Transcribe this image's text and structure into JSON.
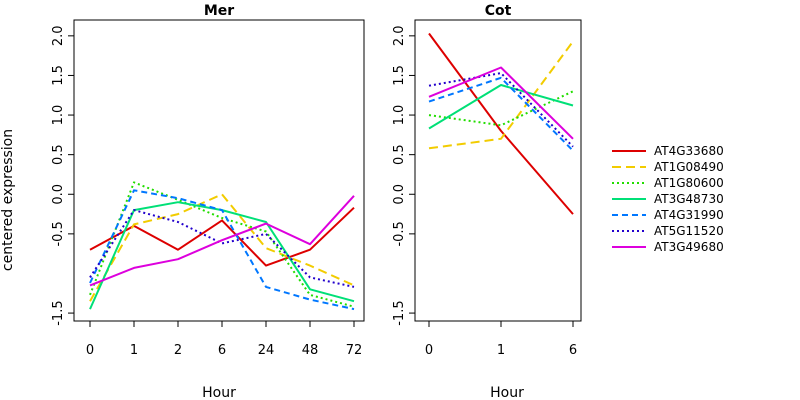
{
  "chart_data": {
    "type": "line",
    "ylabel": "centered expression",
    "legend_position": "right",
    "series_styles": [
      {
        "name": "AT4G33680",
        "color": "#dd0000",
        "dash": "solid"
      },
      {
        "name": "AT1G08490",
        "color": "#f2cc00",
        "dash": "long-dash"
      },
      {
        "name": "AT1G80600",
        "color": "#22dd00",
        "dash": "dotted"
      },
      {
        "name": "AT3G48730",
        "color": "#00e077",
        "dash": "solid"
      },
      {
        "name": "AT4G31990",
        "color": "#0077ff",
        "dash": "dashed"
      },
      {
        "name": "AT5G11520",
        "color": "#2200cc",
        "dash": "dotted"
      },
      {
        "name": "AT3G49680",
        "color": "#dd00dd",
        "dash": "solid"
      }
    ],
    "panels": [
      {
        "title": "Mer",
        "xlabel": "Hour",
        "categories": [
          "0",
          "1",
          "2",
          "6",
          "24",
          "48",
          "72"
        ],
        "ylim": [
          -1.6,
          2.2
        ],
        "yticks": [
          "-1.5",
          "-0.5",
          "0.0",
          "0.5",
          "1.0",
          "1.5",
          "2.0"
        ],
        "ytick_values": [
          -1.5,
          -0.5,
          0.0,
          0.5,
          1.0,
          1.5,
          2.0
        ],
        "series": [
          {
            "name": "AT4G33680",
            "values": [
              -0.7,
              -0.4,
              -0.7,
              -0.33,
              -0.9,
              -0.7,
              -0.17
            ]
          },
          {
            "name": "AT1G08490",
            "values": [
              -1.35,
              -0.38,
              -0.25,
              0.0,
              -0.68,
              -0.9,
              -1.15
            ]
          },
          {
            "name": "AT1G80600",
            "values": [
              -1.27,
              0.15,
              -0.07,
              -0.3,
              -0.47,
              -1.27,
              -1.42
            ]
          },
          {
            "name": "AT3G48730",
            "values": [
              -1.45,
              -0.2,
              -0.1,
              -0.2,
              -0.35,
              -1.2,
              -1.35
            ]
          },
          {
            "name": "AT4G31990",
            "values": [
              -1.12,
              0.05,
              -0.05,
              -0.2,
              -1.17,
              -1.33,
              -1.45
            ]
          },
          {
            "name": "AT5G11520",
            "values": [
              -1.05,
              -0.2,
              -0.35,
              -0.62,
              -0.5,
              -1.05,
              -1.17
            ]
          },
          {
            "name": "AT3G49680",
            "values": [
              -1.15,
              -0.93,
              -0.82,
              -0.58,
              -0.37,
              -0.63,
              -0.02
            ]
          }
        ]
      },
      {
        "title": "Cot",
        "xlabel": "Hour",
        "categories": [
          "0",
          "1",
          "6"
        ],
        "ylim": [
          -1.6,
          2.2
        ],
        "yticks": [
          "-1.5",
          "-0.5",
          "0.0",
          "0.5",
          "1.0",
          "1.5",
          "2.0"
        ],
        "ytick_values": [
          -1.5,
          -0.5,
          0.0,
          0.5,
          1.0,
          1.5,
          2.0
        ],
        "series": [
          {
            "name": "AT4G33680",
            "values": [
              2.03,
              0.8,
              -0.25
            ]
          },
          {
            "name": "AT1G08490",
            "values": [
              0.58,
              0.7,
              1.93
            ]
          },
          {
            "name": "AT1G80600",
            "values": [
              1.0,
              0.87,
              1.3
            ]
          },
          {
            "name": "AT3G48730",
            "values": [
              0.83,
              1.38,
              1.12
            ]
          },
          {
            "name": "AT4G31990",
            "values": [
              1.17,
              1.47,
              0.55
            ]
          },
          {
            "name": "AT5G11520",
            "values": [
              1.37,
              1.53,
              0.6
            ]
          },
          {
            "name": "AT3G49680",
            "values": [
              1.23,
              1.6,
              0.7
            ]
          }
        ]
      }
    ]
  }
}
